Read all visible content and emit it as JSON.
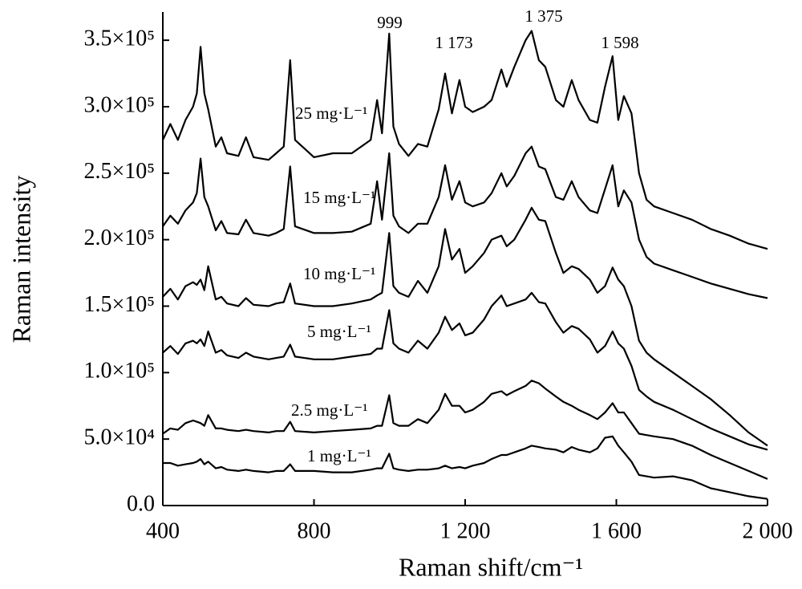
{
  "chart_data": {
    "type": "line",
    "xlabel": "Raman shift/cm⁻¹",
    "ylabel": "Raman intensity",
    "x": [
      400,
      420,
      440,
      460,
      480,
      490,
      500,
      510,
      520,
      540,
      555,
      570,
      600,
      620,
      640,
      680,
      700,
      720,
      737,
      750,
      800,
      850,
      900,
      950,
      967,
      980,
      999,
      1010,
      1025,
      1050,
      1075,
      1100,
      1130,
      1147,
      1165,
      1185,
      1200,
      1220,
      1250,
      1270,
      1296,
      1310,
      1330,
      1360,
      1376,
      1395,
      1412,
      1440,
      1460,
      1482,
      1500,
      1530,
      1550,
      1570,
      1590,
      1605,
      1620,
      1640,
      1660,
      1680,
      1700,
      1750,
      1800,
      1850,
      1900,
      1950,
      2000
    ],
    "series": [
      {
        "name": "25 mg·L⁻¹",
        "color": "#000000",
        "values": [
          275000,
          287000,
          275000,
          290000,
          300000,
          310000,
          345000,
          310000,
          298000,
          270000,
          277000,
          265000,
          263000,
          277000,
          262000,
          260000,
          265000,
          270000,
          335000,
          275000,
          262000,
          265000,
          265000,
          275000,
          305000,
          280000,
          355000,
          285000,
          272000,
          263000,
          272000,
          270000,
          298000,
          325000,
          295000,
          320000,
          300000,
          296000,
          300000,
          305000,
          328000,
          315000,
          330000,
          350000,
          357000,
          335000,
          330000,
          305000,
          300000,
          320000,
          305000,
          290000,
          288000,
          315000,
          338000,
          290000,
          308000,
          295000,
          250000,
          230000,
          225000,
          220000,
          215000,
          208000,
          203000,
          197000,
          193000
        ]
      },
      {
        "name": "15 mg·L⁻¹",
        "color": "#000000",
        "values": [
          210000,
          218000,
          212000,
          222000,
          228000,
          235000,
          261000,
          232000,
          225000,
          207000,
          214000,
          205000,
          204000,
          215000,
          205000,
          203000,
          205000,
          208000,
          255000,
          210000,
          205000,
          205000,
          206000,
          212000,
          244000,
          215000,
          265000,
          218000,
          210000,
          205000,
          212000,
          212000,
          232000,
          256000,
          230000,
          244000,
          228000,
          225000,
          228000,
          235000,
          250000,
          240000,
          248000,
          265000,
          270000,
          255000,
          253000,
          232000,
          230000,
          244000,
          232000,
          222000,
          220000,
          238000,
          256000,
          225000,
          237000,
          228000,
          200000,
          187000,
          182000,
          177000,
          172000,
          167000,
          163000,
          159000,
          156000
        ]
      },
      {
        "name": "10 mg·L⁻¹",
        "color": "#000000",
        "values": [
          157000,
          163000,
          155000,
          165000,
          168000,
          166000,
          170000,
          162000,
          180000,
          155000,
          157000,
          152000,
          150000,
          156000,
          151000,
          150000,
          152000,
          153000,
          167000,
          152000,
          150000,
          150000,
          152000,
          155000,
          158000,
          160000,
          205000,
          165000,
          160000,
          157000,
          169000,
          160000,
          180000,
          208000,
          185000,
          193000,
          175000,
          180000,
          190000,
          200000,
          203000,
          195000,
          200000,
          215000,
          224000,
          215000,
          214000,
          190000,
          175000,
          180000,
          178000,
          170000,
          160000,
          165000,
          179000,
          170000,
          165000,
          150000,
          124000,
          115000,
          110000,
          100000,
          90000,
          80000,
          68000,
          55000,
          45000
        ]
      },
      {
        "name": "5 mg·L⁻¹",
        "color": "#000000",
        "values": [
          115000,
          120000,
          114000,
          122000,
          124000,
          122000,
          125000,
          120000,
          131000,
          115000,
          117000,
          113000,
          111000,
          115000,
          112000,
          110000,
          111000,
          112000,
          121000,
          112000,
          110000,
          110000,
          112000,
          114000,
          118000,
          118000,
          147000,
          122000,
          118000,
          115000,
          124000,
          118000,
          130000,
          142000,
          132000,
          137000,
          128000,
          130000,
          140000,
          150000,
          158000,
          150000,
          152000,
          155000,
          160000,
          153000,
          152000,
          138000,
          130000,
          135000,
          133000,
          125000,
          115000,
          120000,
          131000,
          122000,
          118000,
          105000,
          87000,
          82000,
          78000,
          72000,
          65000,
          58000,
          52000,
          46000,
          42000
        ]
      },
      {
        "name": "2.5 mg·L⁻¹",
        "color": "#000000",
        "values": [
          54000,
          58000,
          57000,
          62000,
          64000,
          63000,
          62000,
          60000,
          68000,
          58000,
          58000,
          57000,
          56000,
          57000,
          56000,
          55000,
          56000,
          56000,
          63000,
          56000,
          55000,
          56000,
          57000,
          58000,
          60000,
          60000,
          83000,
          62000,
          60000,
          60000,
          65000,
          62000,
          72000,
          84000,
          75000,
          75000,
          70000,
          72000,
          78000,
          84000,
          86000,
          83000,
          86000,
          90000,
          94000,
          92000,
          88000,
          82000,
          78000,
          75000,
          72000,
          68000,
          65000,
          70000,
          77000,
          70000,
          70000,
          62000,
          54000,
          53000,
          52000,
          50000,
          45000,
          38000,
          32000,
          26000,
          20000
        ]
      },
      {
        "name": "1 mg·L⁻¹",
        "color": "#000000",
        "values": [
          32000,
          32000,
          30000,
          31000,
          32000,
          33000,
          35000,
          31000,
          33000,
          28000,
          29000,
          27000,
          26000,
          27000,
          26000,
          25000,
          26000,
          26000,
          31000,
          26000,
          26000,
          25000,
          25000,
          27000,
          28000,
          28000,
          39000,
          28000,
          27000,
          26000,
          27000,
          27000,
          28000,
          30000,
          28000,
          29000,
          28000,
          30000,
          32000,
          35000,
          38000,
          38000,
          40000,
          43000,
          45000,
          44000,
          43000,
          42000,
          40000,
          44000,
          42000,
          40000,
          43000,
          51000,
          52000,
          45000,
          40000,
          33000,
          23000,
          22000,
          21000,
          22000,
          19000,
          13000,
          10000,
          7000,
          5000
        ]
      }
    ],
    "annotations": [
      {
        "text": "999"
      },
      {
        "text": "1 173"
      },
      {
        "text": "1 375"
      },
      {
        "text": "1 598"
      }
    ],
    "xlim": [
      400,
      2000
    ],
    "xticks": [
      400,
      800,
      {
        "value": 1200,
        "label": "1 200"
      },
      {
        "value": 1600,
        "label": "1 600"
      },
      {
        "value": 2000,
        "label": "2 000"
      }
    ],
    "ylim": [
      0,
      370000
    ],
    "yticks": [
      {
        "value": 0,
        "label": "0.0"
      },
      {
        "value": 50000,
        "label": "5.0×10⁴"
      },
      {
        "value": 100000,
        "label": "1.0×10⁵"
      },
      {
        "value": 150000,
        "label": "1.5×10⁵"
      },
      {
        "value": 200000,
        "label": "2.0×10⁵"
      },
      {
        "value": 250000,
        "label": "2.5×10⁵"
      },
      {
        "value": 300000,
        "label": "3.0×10⁵"
      },
      {
        "value": 350000,
        "label": "3.5×10⁵"
      }
    ]
  }
}
